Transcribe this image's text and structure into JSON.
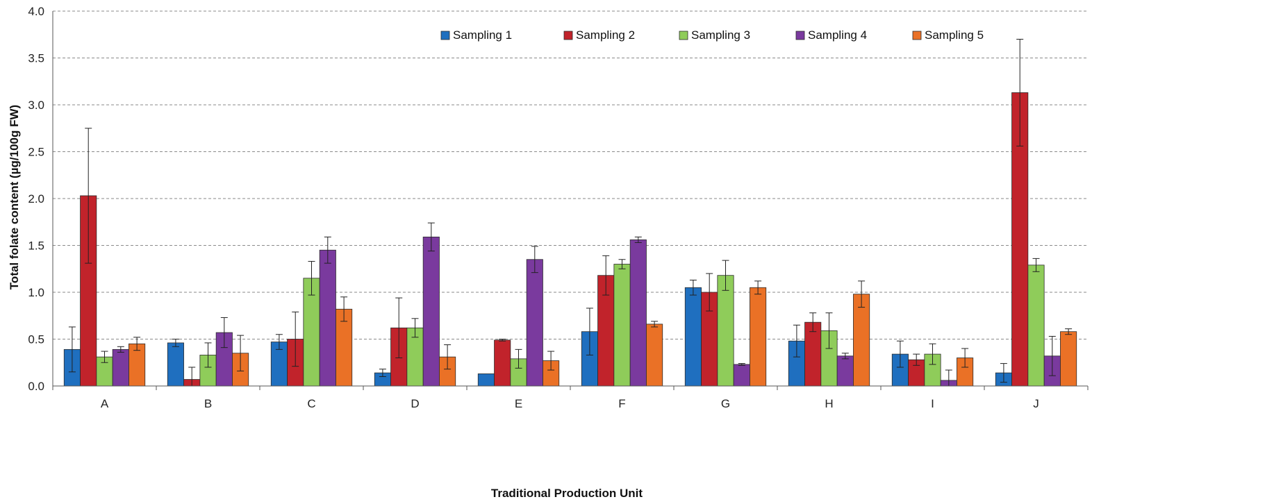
{
  "chart_data": {
    "type": "bar",
    "xlabel": "Traditional Production Unit",
    "ylabel": "Total folate content (µg/100g FW)",
    "ylim": [
      0,
      4.0
    ],
    "yticks": [
      "0.0",
      "0.5",
      "1.0",
      "1.5",
      "2.0",
      "2.5",
      "3.0",
      "3.5",
      "4.0"
    ],
    "grid": true,
    "legend_position": "top-center",
    "categories": [
      "A",
      "B",
      "C",
      "D",
      "E",
      "F",
      "G",
      "H",
      "I",
      "J"
    ],
    "series": [
      {
        "name": "Sampling 1",
        "color": "#1f6fbf",
        "values": [
          0.39,
          0.46,
          0.47,
          0.14,
          0.13,
          0.58,
          1.05,
          0.48,
          0.34,
          0.14
        ],
        "errors": [
          0.24,
          0.04,
          0.08,
          0.04,
          0.0,
          0.25,
          0.08,
          0.17,
          0.14,
          0.1
        ]
      },
      {
        "name": "Sampling 2",
        "color": "#c1232b",
        "values": [
          2.03,
          0.07,
          0.5,
          0.62,
          0.49,
          1.18,
          1.0,
          0.68,
          0.28,
          3.13
        ],
        "errors": [
          0.72,
          0.13,
          0.29,
          0.32,
          0.01,
          0.21,
          0.2,
          0.1,
          0.06,
          0.57
        ]
      },
      {
        "name": "Sampling 3",
        "color": "#8fcc5a",
        "values": [
          0.31,
          0.33,
          1.15,
          0.62,
          0.29,
          1.3,
          1.18,
          0.59,
          0.34,
          1.29
        ],
        "errors": [
          0.06,
          0.13,
          0.18,
          0.1,
          0.1,
          0.05,
          0.16,
          0.19,
          0.11,
          0.07
        ]
      },
      {
        "name": "Sampling 4",
        "color": "#7a3a9e",
        "values": [
          0.39,
          0.57,
          1.45,
          1.59,
          1.35,
          1.56,
          0.23,
          0.32,
          0.06,
          0.32
        ],
        "errors": [
          0.03,
          0.16,
          0.14,
          0.15,
          0.14,
          0.03,
          0.01,
          0.03,
          0.11,
          0.21
        ]
      },
      {
        "name": "Sampling 5",
        "color": "#ea7126",
        "values": [
          0.45,
          0.35,
          0.82,
          0.31,
          0.27,
          0.66,
          1.05,
          0.98,
          0.3,
          0.58
        ],
        "errors": [
          0.07,
          0.19,
          0.13,
          0.13,
          0.1,
          0.03,
          0.07,
          0.14,
          0.1,
          0.03
        ]
      }
    ]
  }
}
